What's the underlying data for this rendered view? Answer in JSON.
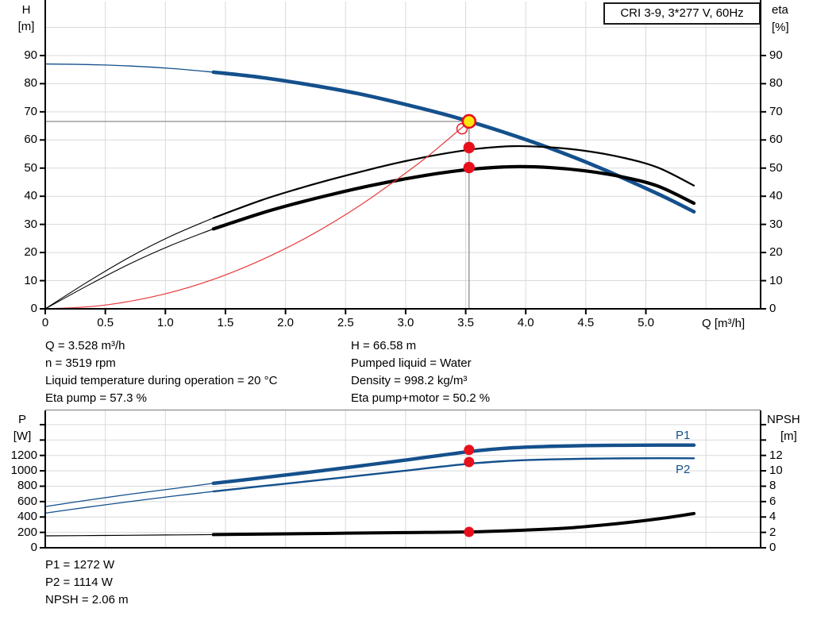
{
  "title_box": "CRI 3-9, 3*277 V, 60Hz",
  "colors": {
    "pump_blue": "#14508c",
    "black": "#000000",
    "system_red": "#e8393b",
    "dot_red": "#e8101c",
    "duty_yellow": "#ffe60a",
    "grid": "#d9d9d9",
    "ref_line": "#8c8c8c",
    "chart_border": "#9a9a9a"
  },
  "axis_titles": {
    "top_left_line1": "H",
    "top_left_line2": "[m]",
    "top_right_line1": "eta",
    "top_right_line2": "[%]",
    "x_title": "Q [m³/h]",
    "bottom_left_line1": "P",
    "bottom_left_line2": "[W]",
    "bottom_right_line1": "NPSH",
    "bottom_right_line2": "[m]"
  },
  "curve_labels": {
    "p1": "P1",
    "p2": "P2"
  },
  "annotations": {
    "left": [
      "Q = 3.528 m³/h",
      "n = 3519 rpm",
      "Liquid temperature during operation = 20 °C",
      "Eta pump = 57.3 %"
    ],
    "right": [
      "H = 66.58 m",
      "Pumped liquid = Water",
      "Density = 998.2 kg/m³",
      "Eta pump+motor = 50.2 %"
    ],
    "bottom": [
      "P1 = 1272 W",
      "P2 = 1114 W",
      "NPSH = 2.06 m"
    ]
  },
  "chart_data": [
    {
      "type": "line",
      "title": "CRI 3-9, 3*277 V, 60Hz",
      "xlabel": "Q [m³/h]",
      "x_axis": {
        "range": [
          0,
          5.95
        ],
        "tick_values": [
          0,
          0.5,
          1,
          1.5,
          2,
          2.5,
          3,
          3.5,
          4,
          4.5,
          5
        ],
        "tick_labels": [
          "0",
          "0.5",
          "1.0",
          "1.5",
          "2.0",
          "2.5",
          "3.0",
          "3.5",
          "4.0",
          "4.5",
          "5.0"
        ],
        "grid_values": [
          0.5,
          1,
          1.5,
          2,
          2.5,
          3,
          3.5,
          4,
          4.5,
          5,
          5.5
        ]
      },
      "y_left": {
        "label": "H [m]",
        "range": [
          0,
          109
        ],
        "tick_values": [
          0,
          10,
          20,
          30,
          40,
          50,
          60,
          70,
          80,
          90
        ],
        "grid_values": [
          10,
          20,
          30,
          40,
          50,
          60,
          70,
          80,
          90,
          100
        ]
      },
      "y_right": {
        "label": "eta [%]",
        "range": [
          0,
          109
        ],
        "tick_values": [
          0,
          10,
          20,
          30,
          40,
          50,
          60,
          70,
          80,
          90
        ]
      },
      "series": [
        {
          "name": "pump-head-curve",
          "axis": "left",
          "color": "#14508c",
          "thin_width": 1.3,
          "thick_width": 4.6,
          "thin": [
            [
              0,
              87
            ],
            [
              0.35,
              86.8
            ],
            [
              0.7,
              86.3
            ],
            [
              1.05,
              85.4
            ],
            [
              1.4,
              84.1
            ]
          ],
          "thick": [
            [
              1.4,
              84.1
            ],
            [
              1.8,
              82.2
            ],
            [
              2.2,
              79.6
            ],
            [
              2.6,
              76.5
            ],
            [
              3.0,
              72.6
            ],
            [
              3.4,
              68.2
            ],
            [
              3.8,
              63.0
            ],
            [
              4.2,
              57.1
            ],
            [
              4.6,
              50.4
            ],
            [
              5.0,
              42.8
            ],
            [
              5.2,
              38.8
            ],
            [
              5.4,
              34.5
            ]
          ]
        },
        {
          "name": "eta-pump-curve",
          "axis": "right",
          "color": "#000000",
          "thin_width": 1.1,
          "thick_width": 2.2,
          "thin": [
            [
              0,
              0
            ],
            [
              0.35,
              9.5
            ],
            [
              0.7,
              18.3
            ],
            [
              1.05,
              25.9
            ],
            [
              1.4,
              32.3
            ]
          ],
          "thick": [
            [
              1.4,
              32.3
            ],
            [
              1.8,
              38.6
            ],
            [
              2.1,
              42.6
            ],
            [
              2.4,
              46.2
            ],
            [
              2.7,
              49.5
            ],
            [
              3.0,
              52.5
            ],
            [
              3.3,
              55.0
            ],
            [
              3.6,
              56.9
            ],
            [
              3.9,
              57.8
            ],
            [
              4.2,
              57.4
            ],
            [
              4.5,
              56.1
            ],
            [
              4.8,
              53.8
            ],
            [
              5.1,
              50.2
            ],
            [
              5.4,
              43.8
            ]
          ]
        },
        {
          "name": "eta-pump-motor-curve",
          "axis": "right",
          "color": "#000000",
          "thin_width": 1.1,
          "thick_width": 4.2,
          "thin": [
            [
              0,
              0
            ],
            [
              0.35,
              8.2
            ],
            [
              0.7,
              15.9
            ],
            [
              1.05,
              22.6
            ],
            [
              1.4,
              28.4
            ]
          ],
          "thick": [
            [
              1.4,
              28.4
            ],
            [
              1.8,
              34.0
            ],
            [
              2.1,
              37.6
            ],
            [
              2.4,
              40.8
            ],
            [
              2.7,
              43.7
            ],
            [
              3.0,
              46.2
            ],
            [
              3.3,
              48.3
            ],
            [
              3.6,
              49.8
            ],
            [
              3.9,
              50.5
            ],
            [
              4.2,
              50.2
            ],
            [
              4.5,
              49.0
            ],
            [
              4.8,
              46.9
            ],
            [
              5.1,
              43.6
            ],
            [
              5.4,
              37.5
            ]
          ]
        },
        {
          "name": "system-curve",
          "axis": "left",
          "color": "#e8393b",
          "thin_width": 1.2,
          "thick_width": 1.2,
          "thin": [
            [
              0,
              0
            ],
            [
              0.44,
              1.04
            ],
            [
              0.88,
              4.14
            ],
            [
              1.32,
              9.3
            ],
            [
              1.76,
              16.6
            ],
            [
              2.2,
              25.9
            ],
            [
              2.65,
              37.6
            ],
            [
              3.1,
              51.4
            ],
            [
              3.3,
              58.3
            ],
            [
              3.528,
              66.58
            ]
          ],
          "thick": []
        }
      ],
      "markers": [
        {
          "kind": "system-ring",
          "x": 3.47,
          "y": 64.0,
          "axis": "left"
        },
        {
          "kind": "duty-point",
          "x": 3.528,
          "y": 66.58,
          "axis": "left"
        },
        {
          "kind": "op-dot",
          "x": 3.528,
          "y": 57.3,
          "axis": "right"
        },
        {
          "kind": "op-dot",
          "x": 3.528,
          "y": 50.2,
          "axis": "right"
        }
      ],
      "ref_lines": {
        "duty_q": 3.528,
        "duty_h": 66.58
      }
    },
    {
      "type": "line",
      "x_axis": {
        "range": [
          0,
          5.95
        ],
        "grid_values": [
          0.5,
          1,
          1.5,
          2,
          2.5,
          3,
          3.5,
          4,
          4.5,
          5,
          5.5
        ]
      },
      "y_left": {
        "label": "P [W]",
        "range": [
          0,
          1775
        ],
        "tick_mark_values": [
          0,
          200,
          400,
          600,
          800,
          1000,
          1200,
          1400,
          1600
        ],
        "tick_labels": [
          "0",
          "200",
          "400",
          "600",
          "800",
          "1000",
          "1200"
        ],
        "tick_label_values": [
          0,
          200,
          400,
          600,
          800,
          1000,
          1200
        ],
        "grid_values": [
          200,
          400,
          600,
          800,
          1000,
          1200,
          1400,
          1600
        ]
      },
      "y_right": {
        "label": "NPSH [m]",
        "range": [
          0,
          17.75
        ],
        "tick_mark_values": [
          0,
          2,
          4,
          6,
          8,
          10,
          12,
          14,
          16
        ],
        "tick_labels": [
          "0",
          "2",
          "4",
          "6",
          "8",
          "10",
          "12"
        ],
        "tick_label_values": [
          0,
          2,
          4,
          6,
          8,
          10,
          12
        ]
      },
      "series": [
        {
          "name": "p1-curve",
          "axis": "left",
          "color": "#14508c",
          "thin_width": 1.3,
          "thick_width": 4.4,
          "thin": [
            [
              0,
              535
            ],
            [
              0.35,
              618
            ],
            [
              0.7,
              695
            ],
            [
              1.05,
              765
            ],
            [
              1.4,
              838
            ]
          ],
          "thick": [
            [
              1.4,
              838
            ],
            [
              1.8,
              908
            ],
            [
              2.2,
              982
            ],
            [
              2.6,
              1060
            ],
            [
              3.0,
              1140
            ],
            [
              3.3,
              1203
            ],
            [
              3.6,
              1262
            ],
            [
              3.9,
              1300
            ],
            [
              4.2,
              1318
            ],
            [
              4.5,
              1328
            ],
            [
              4.8,
              1332
            ],
            [
              5.1,
              1334
            ],
            [
              5.4,
              1334
            ]
          ]
        },
        {
          "name": "p2-curve",
          "axis": "left",
          "color": "#14508c",
          "thin_width": 1.3,
          "thick_width": 2.4,
          "thin": [
            [
              0,
              450
            ],
            [
              0.35,
              527
            ],
            [
              0.7,
              600
            ],
            [
              1.05,
              668
            ],
            [
              1.4,
              732
            ]
          ],
          "thick": [
            [
              1.4,
              732
            ],
            [
              1.8,
              800
            ],
            [
              2.2,
              866
            ],
            [
              2.6,
              934
            ],
            [
              3.0,
              1002
            ],
            [
              3.3,
              1055
            ],
            [
              3.6,
              1102
            ],
            [
              3.9,
              1132
            ],
            [
              4.2,
              1148
            ],
            [
              4.5,
              1157
            ],
            [
              4.8,
              1162
            ],
            [
              5.1,
              1164
            ],
            [
              5.4,
              1163
            ]
          ]
        },
        {
          "name": "npsh-curve",
          "axis": "right",
          "color": "#000000",
          "thin_width": 1.2,
          "thick_width": 4.0,
          "thin": [
            [
              0,
              1.55
            ],
            [
              0.5,
              1.6
            ],
            [
              1.0,
              1.66
            ],
            [
              1.4,
              1.71
            ]
          ],
          "thick": [
            [
              1.4,
              1.71
            ],
            [
              2.0,
              1.8
            ],
            [
              2.5,
              1.89
            ],
            [
              3.0,
              1.97
            ],
            [
              3.528,
              2.06
            ],
            [
              4.0,
              2.3
            ],
            [
              4.4,
              2.62
            ],
            [
              4.8,
              3.2
            ],
            [
              5.1,
              3.75
            ],
            [
              5.4,
              4.45
            ]
          ]
        }
      ],
      "markers": [
        {
          "kind": "op-dot",
          "x": 3.528,
          "y": 1272,
          "axis": "left"
        },
        {
          "kind": "op-dot",
          "x": 3.528,
          "y": 1114,
          "axis": "left"
        },
        {
          "kind": "op-dot",
          "x": 3.528,
          "y": 2.06,
          "axis": "right"
        }
      ]
    }
  ]
}
